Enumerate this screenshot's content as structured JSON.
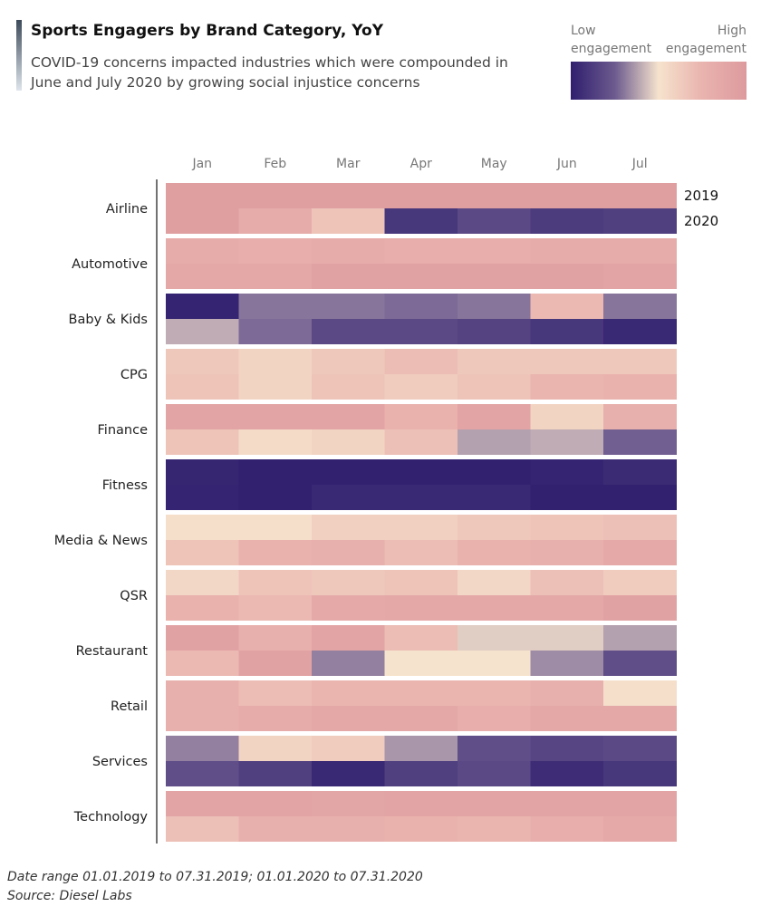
{
  "header": {
    "title": "Sports Engagers by Brand Category, YoY",
    "subtitle": "COVID-19 concerns impacted industries which were compounded in June and July 2020 by growing social injustice concerns"
  },
  "legend": {
    "low_line1": "Low",
    "low_line2": "engagement",
    "high_line1": "High",
    "high_line2": "engagement"
  },
  "footnote": {
    "line1": "Date range 01.01.2019 to 07.31.2019; 01.01.2020 to 07.31.2020",
    "line2": "Source: Diesel Labs"
  },
  "chart_data": {
    "type": "heatmap",
    "title": "Sports Engagers by Brand Category, YoY",
    "months": [
      "Jan",
      "Feb",
      "Mar",
      "Apr",
      "May",
      "Jun",
      "Jul"
    ],
    "years": [
      "2019",
      "2020"
    ],
    "scale": {
      "min": 0,
      "max": 1,
      "low_label": "Low engagement",
      "high_label": "High engagement"
    },
    "colors": {
      "low": "#2f1f6e",
      "mid_low": "#6c5a8e",
      "mid": "#f6e3cd",
      "mid_high": "#e9b3ae",
      "high": "#dd9a9e"
    },
    "categories": [
      {
        "name": "Airline",
        "y2019": [
          0.95,
          0.95,
          0.95,
          0.95,
          0.95,
          0.95,
          0.95
        ],
        "y2020": [
          0.95,
          0.82,
          0.66,
          0.1,
          0.18,
          0.12,
          0.14
        ]
      },
      {
        "name": "Automotive",
        "y2019": [
          0.82,
          0.8,
          0.82,
          0.8,
          0.8,
          0.82,
          0.82
        ],
        "y2020": [
          0.86,
          0.86,
          0.92,
          0.92,
          0.92,
          0.92,
          0.9
        ]
      },
      {
        "name": "Baby & Kids",
        "y2019": [
          0.02,
          0.3,
          0.3,
          0.28,
          0.3,
          0.72,
          0.3
        ],
        "y2020": [
          0.4,
          0.28,
          0.18,
          0.18,
          0.15,
          0.1,
          0.04
        ]
      },
      {
        "name": "CPG",
        "y2019": [
          0.64,
          0.58,
          0.64,
          0.7,
          0.64,
          0.64,
          0.64
        ],
        "y2020": [
          0.66,
          0.58,
          0.66,
          0.62,
          0.66,
          0.74,
          0.76
        ]
      },
      {
        "name": "Finance",
        "y2019": [
          0.9,
          0.9,
          0.9,
          0.76,
          0.9,
          0.58,
          0.78
        ],
        "y2020": [
          0.66,
          0.54,
          0.58,
          0.68,
          0.38,
          0.4,
          0.26
        ]
      },
      {
        "name": "Fitness",
        "y2019": [
          0.03,
          0.01,
          0.01,
          0.01,
          0.01,
          0.02,
          0.05
        ],
        "y2020": [
          0.02,
          0.01,
          0.04,
          0.04,
          0.04,
          0.01,
          0.01
        ]
      },
      {
        "name": "Media & News",
        "y2019": [
          0.52,
          0.52,
          0.6,
          0.6,
          0.64,
          0.66,
          0.68
        ],
        "y2020": [
          0.66,
          0.76,
          0.78,
          0.7,
          0.76,
          0.78,
          0.84
        ]
      },
      {
        "name": "QSR",
        "y2019": [
          0.56,
          0.66,
          0.64,
          0.66,
          0.56,
          0.68,
          0.62
        ],
        "y2020": [
          0.76,
          0.72,
          0.84,
          0.86,
          0.86,
          0.86,
          0.92
        ]
      },
      {
        "name": "Restaurant",
        "y2019": [
          0.92,
          0.78,
          0.9,
          0.7,
          0.46,
          0.46,
          0.38
        ],
        "y2020": [
          0.72,
          0.92,
          0.32,
          0.5,
          0.5,
          0.34,
          0.2
        ]
      },
      {
        "name": "Retail",
        "y2019": [
          0.78,
          0.7,
          0.74,
          0.74,
          0.74,
          0.78,
          0.52
        ],
        "y2020": [
          0.78,
          0.82,
          0.86,
          0.86,
          0.8,
          0.86,
          0.86
        ]
      },
      {
        "name": "Services",
        "y2019": [
          0.32,
          0.58,
          0.62,
          0.36,
          0.2,
          0.16,
          0.18
        ],
        "y2020": [
          0.2,
          0.14,
          0.04,
          0.14,
          0.18,
          0.06,
          0.1
        ]
      },
      {
        "name": "Technology",
        "y2019": [
          0.9,
          0.9,
          0.88,
          0.9,
          0.9,
          0.9,
          0.9
        ],
        "y2020": [
          0.68,
          0.78,
          0.78,
          0.76,
          0.74,
          0.8,
          0.84
        ]
      }
    ]
  }
}
